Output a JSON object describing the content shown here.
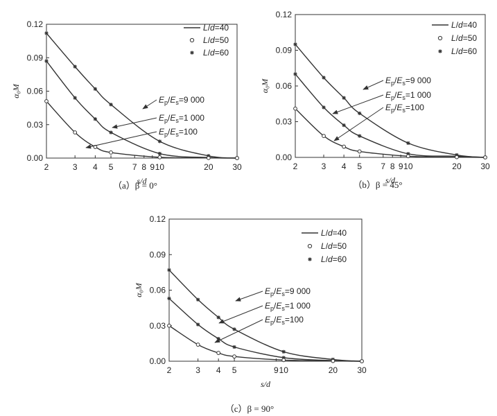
{
  "chart_data": [
    {
      "type": "line",
      "caption": "（a）β = 0°",
      "xlabel": "s/d",
      "ylabel": "α₀M",
      "xscale": "log",
      "xlim": [
        2,
        30
      ],
      "ylim": [
        0,
        0.12
      ],
      "xticks": [
        2,
        3,
        4,
        5,
        7,
        8,
        9,
        10,
        20,
        30
      ],
      "xtick_labels": [
        "2",
        "3",
        "4",
        "5",
        "7",
        "8",
        "9",
        "10",
        "20",
        "30"
      ],
      "yticks": [
        0,
        0.03,
        0.06,
        0.09,
        0.12
      ],
      "ytick_labels": [
        "0.00",
        "0.03",
        "0.06",
        "0.09",
        "0.12"
      ],
      "legend": [
        {
          "label": "L/d=40",
          "marker": "line"
        },
        {
          "label": "L/d=50",
          "marker": "circle"
        },
        {
          "label": "L/d=60",
          "marker": "star"
        }
      ],
      "legend_position": "top-right",
      "x": [
        2,
        3,
        4,
        5,
        10,
        20,
        30
      ],
      "series": [
        {
          "name": "Ep/Es=9 000",
          "values": [
            0.112,
            0.082,
            0.062,
            0.048,
            0.015,
            0.002,
            0.0
          ]
        },
        {
          "name": "Ep/Es=1 000",
          "values": [
            0.087,
            0.054,
            0.035,
            0.023,
            0.004,
            0.0005,
            0.0
          ]
        },
        {
          "name": "Ep/Es=100",
          "values": [
            0.051,
            0.023,
            0.01,
            0.005,
            0.0007,
            0.0001,
            0.0
          ]
        }
      ]
    },
    {
      "type": "line",
      "caption": "（b）β = 45°",
      "xlabel": "s/d",
      "ylabel": "α₀M",
      "xscale": "log",
      "xlim": [
        2,
        30
      ],
      "ylim": [
        0,
        0.12
      ],
      "xticks": [
        2,
        3,
        4,
        5,
        7,
        8,
        9,
        10,
        20,
        30
      ],
      "xtick_labels": [
        "2",
        "3",
        "4",
        "5",
        "7",
        "8",
        "9",
        "10",
        "20",
        "30"
      ],
      "yticks": [
        0,
        0.03,
        0.06,
        0.09,
        0.12
      ],
      "ytick_labels": [
        "0.00",
        "0.03",
        "0.06",
        "0.09",
        "0.12"
      ],
      "legend": [
        {
          "label": "L/d=40",
          "marker": "line"
        },
        {
          "label": "L/d=50",
          "marker": "circle"
        },
        {
          "label": "L/d=60",
          "marker": "star"
        }
      ],
      "legend_position": "top-right",
      "x": [
        2,
        3,
        4,
        5,
        10,
        20,
        30
      ],
      "series": [
        {
          "name": "Ep/Es=9 000",
          "values": [
            0.095,
            0.067,
            0.05,
            0.037,
            0.012,
            0.002,
            0.0
          ]
        },
        {
          "name": "Ep/Es=1 000",
          "values": [
            0.07,
            0.042,
            0.027,
            0.018,
            0.003,
            0.001,
            0.0
          ]
        },
        {
          "name": "Ep/Es=100",
          "values": [
            0.041,
            0.018,
            0.009,
            0.005,
            0.001,
            0.0002,
            0.0
          ]
        }
      ]
    },
    {
      "type": "line",
      "caption": "（c）β = 90°",
      "xlabel": "s/d",
      "ylabel": "α₀M",
      "xscale": "log",
      "xlim": [
        2,
        30
      ],
      "ylim": [
        0,
        0.12
      ],
      "xticks": [
        2,
        3,
        4,
        5,
        9,
        10,
        20,
        30
      ],
      "xtick_labels": [
        "2",
        "3",
        "4",
        "5",
        "9",
        "10",
        "20",
        "30"
      ],
      "yticks": [
        0,
        0.03,
        0.06,
        0.09,
        0.12
      ],
      "ytick_labels": [
        "0.00",
        "0.03",
        "0.06",
        "0.09",
        "0.12"
      ],
      "legend": [
        {
          "label": "L/d=40",
          "marker": "line"
        },
        {
          "label": "L/d=50",
          "marker": "circle"
        },
        {
          "label": "L/d=60",
          "marker": "star"
        }
      ],
      "legend_position": "top-right",
      "x": [
        2,
        3,
        4,
        5,
        10,
        20,
        30
      ],
      "series": [
        {
          "name": "Ep/Es=9 000",
          "values": [
            0.077,
            0.052,
            0.037,
            0.027,
            0.008,
            0.0015,
            0.0
          ]
        },
        {
          "name": "Ep/Es=1 000",
          "values": [
            0.053,
            0.031,
            0.019,
            0.012,
            0.003,
            0.0005,
            0.0
          ]
        },
        {
          "name": "Ep/Es=100",
          "values": [
            0.03,
            0.014,
            0.007,
            0.004,
            0.001,
            0.0002,
            0.0
          ]
        }
      ]
    }
  ]
}
